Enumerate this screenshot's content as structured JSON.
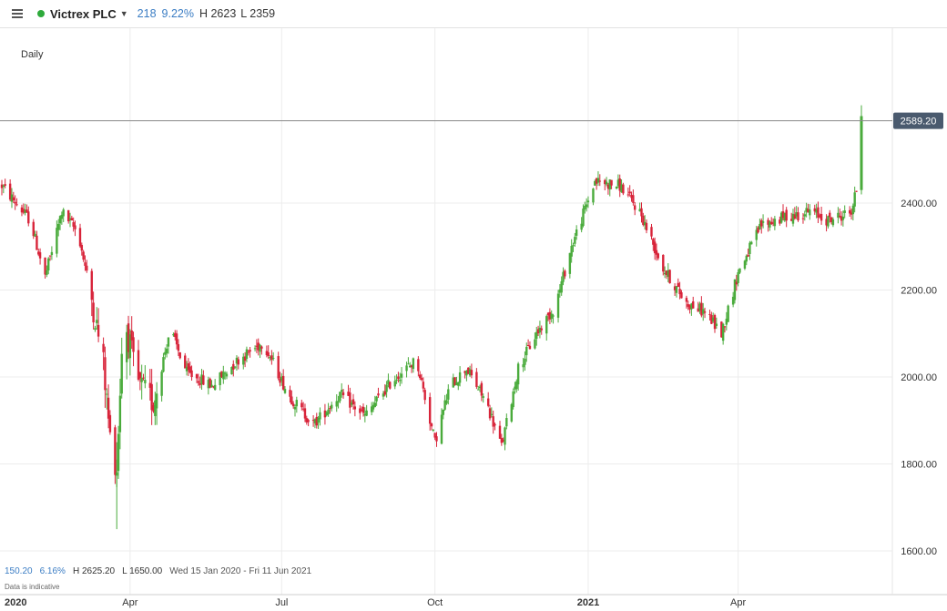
{
  "header": {
    "instrument": "Victrex PLC",
    "change": "218",
    "change_pct": "9.22%",
    "high": "H 2623",
    "low": "L 2359",
    "status_color": "#2eaa3b"
  },
  "chart_label": "Daily",
  "footer": {
    "change": "150.20",
    "change_pct": "6.16%",
    "high": "H 2625.20",
    "low": "L 1650.00",
    "range": "Wed 15 Jan 2020 - Fri 11 Jun 2021",
    "note": "Data is indicative"
  },
  "colors": {
    "up": "#4aab3c",
    "down": "#d8243a",
    "price_label_bg": "#4a5a6e"
  },
  "chart_data": {
    "type": "candlestick",
    "y_ticks": [
      "2400.00",
      "2200.00",
      "2000.00",
      "1800.00",
      "1600.00"
    ],
    "y_tick_values": [
      2400,
      2200,
      2000,
      1800,
      1600
    ],
    "x_ticks": [
      "2020",
      "Apr",
      "Jul",
      "Oct",
      "2021",
      "Apr"
    ],
    "x_tick_dates": [
      "2020-01-01",
      "2020-04-01",
      "2020-07-01",
      "2020-10-01",
      "2021-01-01",
      "2021-04-01"
    ],
    "ylim": [
      1570,
      2640
    ],
    "xlim": [
      "2020-01-15",
      "2021-06-14"
    ],
    "current_price": 2589.2,
    "current_price_label": "2589.20",
    "series": [
      {
        "d": "2020-01-15",
        "v": 2440
      },
      {
        "d": "2020-02-01",
        "v": 2360
      },
      {
        "d": "2020-02-10",
        "v": 2230
      },
      {
        "d": "2020-02-20",
        "v": 2380
      },
      {
        "d": "2020-03-01",
        "v": 2330
      },
      {
        "d": "2020-03-10",
        "v": 2160
      },
      {
        "d": "2020-03-16",
        "v": 2030
      },
      {
        "d": "2020-03-20",
        "v": 1860
      },
      {
        "d": "2020-03-24",
        "v": 1790
      },
      {
        "d": "2020-03-28",
        "v": 2150
      },
      {
        "d": "2020-04-05",
        "v": 1990
      },
      {
        "d": "2020-04-15",
        "v": 1940
      },
      {
        "d": "2020-04-25",
        "v": 2110
      },
      {
        "d": "2020-05-05",
        "v": 2010
      },
      {
        "d": "2020-05-20",
        "v": 1980
      },
      {
        "d": "2020-06-05",
        "v": 2040
      },
      {
        "d": "2020-06-20",
        "v": 2080
      },
      {
        "d": "2020-07-05",
        "v": 1960
      },
      {
        "d": "2020-07-20",
        "v": 1890
      },
      {
        "d": "2020-08-05",
        "v": 1960
      },
      {
        "d": "2020-08-20",
        "v": 1910
      },
      {
        "d": "2020-09-05",
        "v": 1990
      },
      {
        "d": "2020-09-20",
        "v": 2040
      },
      {
        "d": "2020-10-01",
        "v": 1850
      },
      {
        "d": "2020-10-10",
        "v": 1980
      },
      {
        "d": "2020-10-20",
        "v": 2020
      },
      {
        "d": "2020-11-01",
        "v": 1940
      },
      {
        "d": "2020-11-10",
        "v": 1840
      },
      {
        "d": "2020-11-20",
        "v": 2020
      },
      {
        "d": "2020-12-01",
        "v": 2100
      },
      {
        "d": "2020-12-12",
        "v": 2160
      },
      {
        "d": "2020-12-22",
        "v": 2300
      },
      {
        "d": "2021-01-05",
        "v": 2450
      },
      {
        "d": "2021-01-20",
        "v": 2440
      },
      {
        "d": "2021-02-01",
        "v": 2380
      },
      {
        "d": "2021-02-15",
        "v": 2250
      },
      {
        "d": "2021-03-01",
        "v": 2170
      },
      {
        "d": "2021-03-12",
        "v": 2150
      },
      {
        "d": "2021-03-22",
        "v": 2100
      },
      {
        "d": "2021-04-01",
        "v": 2240
      },
      {
        "d": "2021-04-15",
        "v": 2350
      },
      {
        "d": "2021-05-01",
        "v": 2370
      },
      {
        "d": "2021-05-15",
        "v": 2380
      },
      {
        "d": "2021-05-25",
        "v": 2360
      },
      {
        "d": "2021-06-08",
        "v": 2380
      },
      {
        "d": "2021-06-11",
        "v": 2430
      }
    ],
    "last_candle": {
      "d": "2021-06-14",
      "open": 2430,
      "close": 2600,
      "high": 2625,
      "low": 2420
    }
  }
}
